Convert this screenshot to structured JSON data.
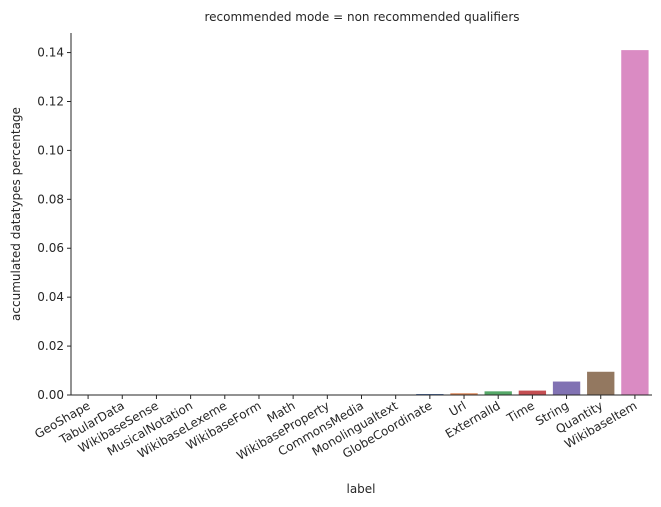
{
  "chart_data": {
    "type": "bar",
    "title": "recommended mode = non recommended qualifiers",
    "xlabel": "label",
    "ylabel": "accumulated datatypes percentage",
    "ylim": [
      0,
      0.148
    ],
    "yticks": [
      0.0,
      0.02,
      0.04,
      0.06,
      0.08,
      0.1,
      0.12,
      0.14
    ],
    "grid": false,
    "legend": "none",
    "categories": [
      "GeoShape",
      "TabularData",
      "WikibaseSense",
      "MusicalNotation",
      "WikibaseLexeme",
      "WikibaseForm",
      "Math",
      "WikibaseProperty",
      "CommonsMedia",
      "Monolingualtext",
      "GlobeCoordinate",
      "Url",
      "ExternalId",
      "Time",
      "String",
      "Quantity",
      "WikibaseItem"
    ],
    "values": [
      0.0,
      0.0,
      0.0,
      0.0,
      0.0,
      0.0,
      0.0,
      0.0,
      0.0,
      0.0,
      0.0004,
      0.0007,
      0.0015,
      0.0018,
      0.0055,
      0.0095,
      0.141
    ],
    "colors": [
      "#4c72b0",
      "#dd8452",
      "#55a868",
      "#c44e52",
      "#8172b3",
      "#937860",
      "#da8bc3",
      "#8c8c8c",
      "#ccb974",
      "#64b5cd",
      "#4c72b0",
      "#dd8452",
      "#55a868",
      "#c44e52",
      "#8172b3",
      "#937860",
      "#da8bc3"
    ]
  }
}
